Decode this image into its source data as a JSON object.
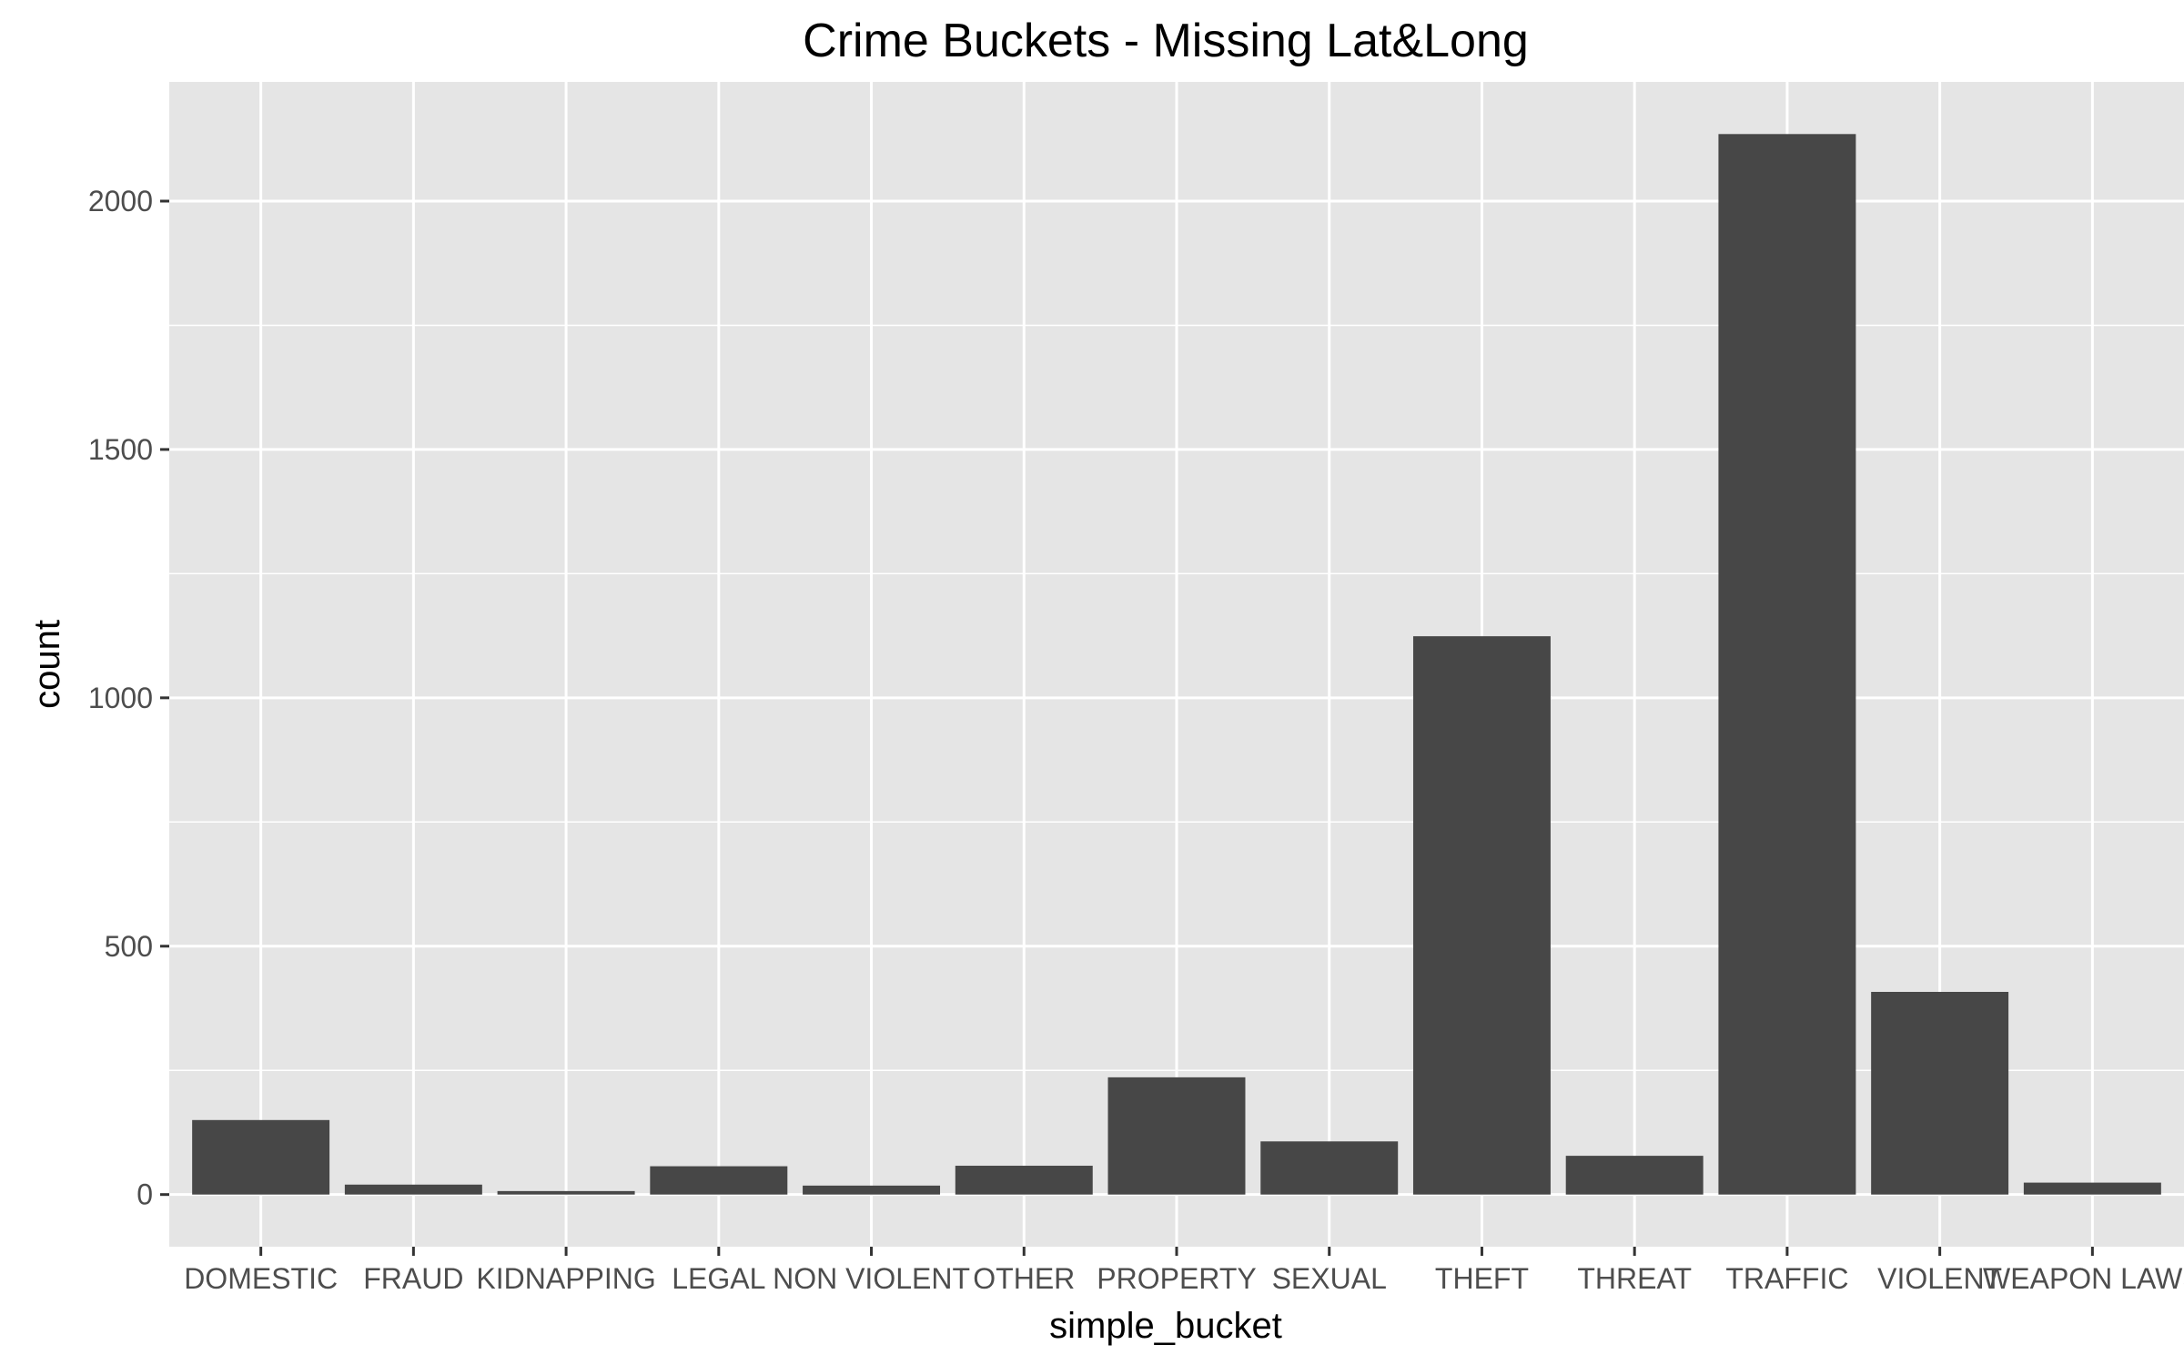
{
  "chart_data": {
    "type": "bar",
    "title": "Crime Buckets - Missing Lat&Long",
    "xlabel": "simple_bucket",
    "ylabel": "count",
    "categories": [
      "DOMESTIC",
      "FRAUD",
      "KIDNAPPING",
      "LEGAL",
      "NON VIOLENT",
      "OTHER",
      "PROPERTY",
      "SEXUAL",
      "THEFT",
      "THREAT",
      "TRAFFIC",
      "VIOLENT",
      "WEAPON LAWS"
    ],
    "values": [
      150,
      20,
      7,
      57,
      18,
      58,
      236,
      107,
      1124,
      78,
      2135,
      408,
      24
    ],
    "yticks": [
      0,
      500,
      1000,
      1500,
      2000
    ],
    "ylim": [
      -105,
      2240
    ],
    "grid": true,
    "colors": {
      "panel": "#e5e5e5",
      "grid": "#ffffff",
      "bar": "#474747",
      "tick": "#333333"
    }
  }
}
